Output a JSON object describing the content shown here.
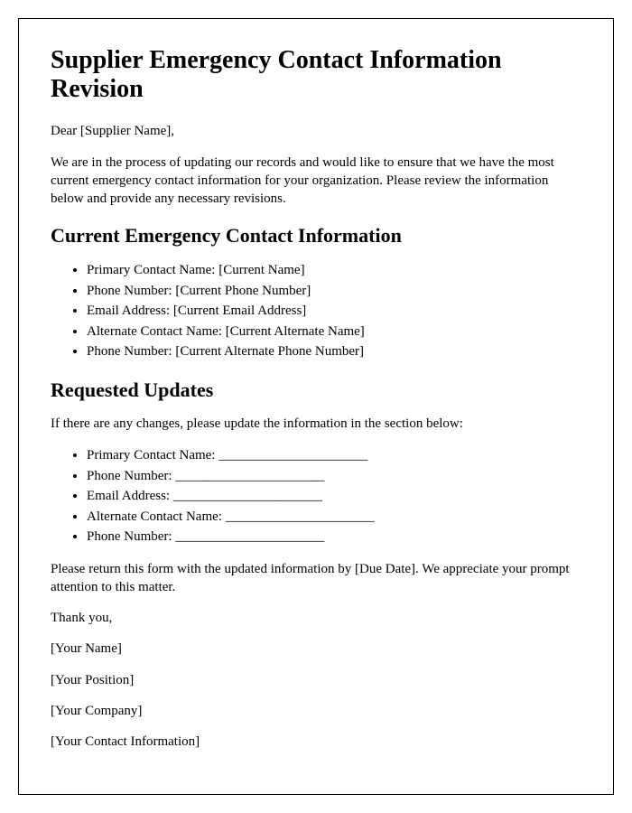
{
  "title": "Supplier Emergency Contact Information Revision",
  "salutation": "Dear [Supplier Name],",
  "intro_paragraph": "We are in the process of updating our records and would like to ensure that we have the most current emergency contact information for your organization. Please review the information below and provide any necessary revisions.",
  "section_current": {
    "heading": "Current Emergency Contact Information",
    "items": [
      "Primary Contact Name: [Current Name]",
      "Phone Number: [Current Phone Number]",
      "Email Address: [Current Email Address]",
      "Alternate Contact Name: [Current Alternate Name]",
      "Phone Number: [Current Alternate Phone Number]"
    ]
  },
  "section_updates": {
    "heading": "Requested Updates",
    "intro": "If there are any changes, please update the information in the section below:",
    "items": [
      "Primary Contact Name: ______________________",
      "Phone Number: ______________________",
      "Email Address: ______________________",
      "Alternate Contact Name: ______________________",
      "Phone Number: ______________________"
    ]
  },
  "closing_paragraph": "Please return this form with the updated information by [Due Date]. We appreciate your prompt attention to this matter.",
  "thank_you": "Thank you,",
  "signature": {
    "name": "[Your Name]",
    "position": "[Your Position]",
    "company": "[Your Company]",
    "contact": "[Your Contact Information]"
  }
}
